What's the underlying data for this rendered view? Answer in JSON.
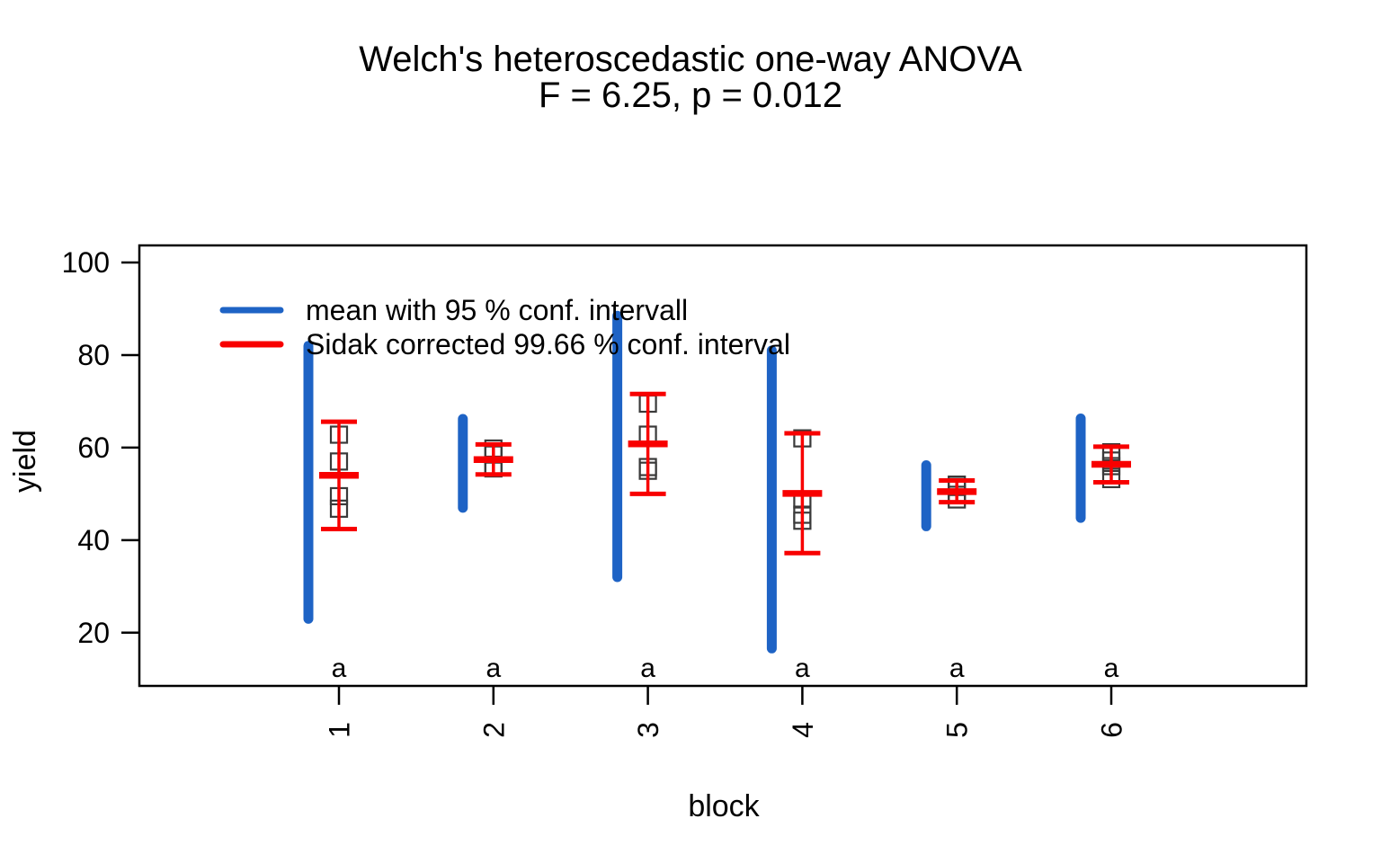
{
  "chart_data": {
    "type": "scatter",
    "title": "Welch's heteroscedastic one-way ANOVA",
    "subtitle": "F = 6.25, p = 0.012",
    "xlabel": "block",
    "ylabel": "yield",
    "x_tick_labels": [
      "1",
      "2",
      "3",
      "4",
      "5",
      "6"
    ],
    "y_ticks": [
      20,
      40,
      60,
      80,
      100
    ],
    "ylim": [
      8.5,
      103.7
    ],
    "grid": false,
    "legend_position": "top-left-inside",
    "legend": [
      {
        "label": "mean with 95 % conf. intervall",
        "color": "#1e63c5",
        "series_key": "blue_interval"
      },
      {
        "label": "Sidak corrected 99.66 % conf. interval",
        "color": "#f80000",
        "series_key": "red_interval"
      }
    ],
    "groups": [
      {
        "block": "1",
        "letter": "a",
        "mean": 54.0,
        "blue_interval": [
          23.0,
          82.0
        ],
        "red_interval": [
          42.4,
          65.6
        ],
        "points": [
          49.5,
          62.8,
          46.8,
          57.0
        ]
      },
      {
        "block": "2",
        "letter": "a",
        "mean": 57.4,
        "blue_interval": [
          47.0,
          66.2
        ],
        "red_interval": [
          54.2,
          60.7
        ],
        "points": [
          59.8,
          58.5,
          55.5,
          56.0
        ]
      },
      {
        "block": "3",
        "letter": "a",
        "mean": 60.8,
        "blue_interval": [
          32.0,
          88.5
        ],
        "red_interval": [
          50.0,
          71.6
        ],
        "points": [
          62.8,
          55.8,
          69.5,
          55.0
        ]
      },
      {
        "block": "4",
        "letter": "a",
        "mean": 50.1,
        "blue_interval": [
          16.6,
          81.0
        ],
        "red_interval": [
          37.2,
          63.1
        ],
        "points": [
          62.0,
          48.8,
          45.5,
          44.2
        ]
      },
      {
        "block": "5",
        "letter": "a",
        "mean": 50.5,
        "blue_interval": [
          43.0,
          56.2
        ],
        "red_interval": [
          48.2,
          52.9
        ],
        "points": [
          52.0,
          51.5,
          49.8,
          48.8
        ]
      },
      {
        "block": "6",
        "letter": "a",
        "mean": 56.4,
        "blue_interval": [
          44.8,
          66.3
        ],
        "red_interval": [
          52.5,
          60.2
        ],
        "points": [
          57.2,
          59.0,
          53.2,
          56.0
        ]
      }
    ],
    "colors": {
      "blue_interval": "#1e63c5",
      "red_interval": "#f80000",
      "posthoc_letter": "#1e7b1e",
      "data_point_outline": "#3a3a3a",
      "axis": "#000000",
      "background": "#ffffff"
    }
  }
}
